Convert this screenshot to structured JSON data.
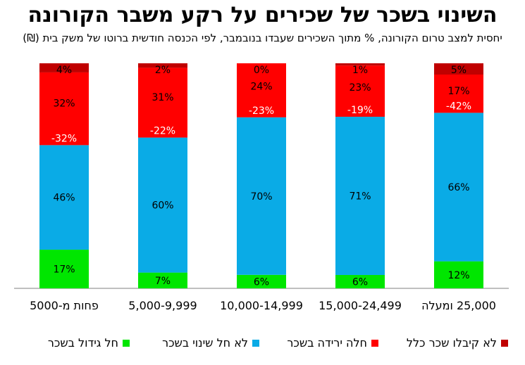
{
  "chart_data": {
    "type": "bar",
    "stacked": true,
    "percent": true,
    "title": "השינוי בשכר של שכירים על רקע משבר הקורונה",
    "subtitle": "יחסית למצב טרום הקורונה, % מתוך השכירים שעבדו בנובמבר, לפי הכנסה חודשית ברוטו של משק בית (₪)",
    "categories": [
      "פחות מ-5000",
      "5,000-9,999",
      "10,000-14,999",
      "15,000-24,499",
      "25,000 ומעלה"
    ],
    "series": [
      {
        "name": "חל גידול בשכר",
        "color": "#00e600",
        "values": [
          17,
          7,
          6,
          6,
          12
        ]
      },
      {
        "name": "לא חל שינוי בשכר",
        "color": "#0aabe6",
        "values": [
          46,
          60,
          70,
          71,
          66
        ]
      },
      {
        "name": "חלה ירידה בשכר",
        "color": "#ff0000",
        "values": [
          32,
          31,
          24,
          23,
          17
        ]
      },
      {
        "name": "לא קיבלו שכר כלל",
        "color": "#c00000",
        "values": [
          4,
          2,
          0,
          1,
          5
        ]
      }
    ],
    "value_labels": [
      [
        "17%",
        "7%",
        "6%",
        "6%",
        "12%"
      ],
      [
        "46%",
        "60%",
        "70%",
        "71%",
        "66%"
      ],
      [
        "32%",
        "31%",
        "24%",
        "23%",
        "17%"
      ],
      [
        "4%",
        "2%",
        "0%",
        "1%",
        "5%"
      ]
    ],
    "net_change_labels": [
      "-32%",
      "-22%",
      "-23%",
      "-19%",
      "-42%"
    ],
    "ylim": [
      0,
      100
    ],
    "grid": false,
    "legend_position": "bottom"
  }
}
